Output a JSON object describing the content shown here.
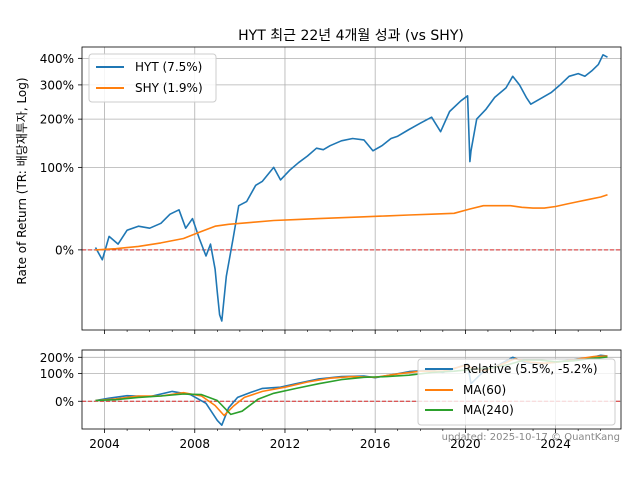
{
  "chart_data": [
    {
      "type": "line",
      "title": "HYT 최근 22년 4개월 성과 (vs SHY)",
      "ylabel": "Rate of Return (TR: 배당재투자, Log)",
      "y_scale": "log (1 + return)",
      "yticks": [
        "0%",
        "100%",
        "200%",
        "300%",
        "400%"
      ],
      "xlim": [
        2003.0,
        2026.9
      ],
      "ylim_pct": [
        -49,
        450
      ],
      "grid": true,
      "legend_position": "top-left",
      "reference_line": {
        "value_pct": 0,
        "color": "#d62728",
        "style": "dashed"
      },
      "series": [
        {
          "name": "HYT (7.5%)",
          "color": "#1f77b4",
          "x": [
            2003.6,
            2003.9,
            2004.2,
            2004.6,
            2005.0,
            2005.5,
            2006.0,
            2006.5,
            2006.9,
            2007.3,
            2007.6,
            2007.9,
            2008.2,
            2008.5,
            2008.7,
            2008.9,
            2009.0,
            2009.1,
            2009.2,
            2009.4,
            2009.7,
            2009.95,
            2010.3,
            2010.7,
            2011.0,
            2011.5,
            2011.8,
            2012.2,
            2012.6,
            2013.0,
            2013.4,
            2013.7,
            2014.0,
            2014.5,
            2015.0,
            2015.5,
            2015.9,
            2016.3,
            2016.7,
            2017.0,
            2017.5,
            2018.0,
            2018.5,
            2018.9,
            2019.3,
            2019.8,
            2020.1,
            2020.2,
            2020.25,
            2020.5,
            2020.9,
            2021.3,
            2021.8,
            2022.1,
            2022.4,
            2022.7,
            2022.9,
            2023.3,
            2023.8,
            2024.2,
            2024.6,
            2025.0,
            2025.3,
            2025.6,
            2025.9,
            2026.1,
            2026.3
          ],
          "values": [
            2,
            -8,
            12,
            5,
            18,
            22,
            20,
            25,
            35,
            40,
            20,
            30,
            10,
            -5,
            5,
            -15,
            -30,
            -42,
            -45,
            -20,
            10,
            45,
            50,
            72,
            78,
            100,
            80,
            95,
            108,
            120,
            135,
            132,
            140,
            150,
            155,
            152,
            130,
            140,
            155,
            160,
            175,
            190,
            205,
            170,
            220,
            250,
            265,
            110,
            130,
            200,
            225,
            260,
            290,
            330,
            300,
            260,
            240,
            255,
            275,
            300,
            330,
            340,
            330,
            350,
            375,
            415,
            405
          ]
        },
        {
          "name": "SHY (1.9%)",
          "color": "#ff7f0e",
          "x": [
            2003.6,
            2004.5,
            2005.5,
            2006.5,
            2007.5,
            2008.2,
            2008.9,
            2009.5,
            2010.5,
            2011.5,
            2012.5,
            2013.5,
            2014.5,
            2015.5,
            2016.5,
            2017.5,
            2018.5,
            2019.5,
            2020.2,
            2020.8,
            2021.5,
            2022.0,
            2022.5,
            2023.0,
            2023.5,
            2024.0,
            2024.5,
            2025.0,
            2025.5,
            2026.0,
            2026.3
          ],
          "values": [
            0,
            1,
            3,
            6,
            10,
            16,
            22,
            24,
            26,
            28,
            29,
            30,
            31,
            32,
            33,
            34,
            35,
            36,
            41,
            45,
            45,
            45,
            43,
            42,
            42,
            44,
            47,
            50,
            53,
            56,
            59
          ]
        }
      ]
    },
    {
      "type": "line",
      "yticks": [
        "0%",
        "100%",
        "200%"
      ],
      "xticks": [
        "2004",
        "2008",
        "2012",
        "2016",
        "2020",
        "2024"
      ],
      "xlim": [
        2003.0,
        2026.9
      ],
      "ylim_pct": [
        -50,
        260
      ],
      "grid": true,
      "legend_position": "lower-right",
      "reference_line": {
        "value_pct": 0,
        "color": "#d62728",
        "style": "dashed"
      },
      "series": [
        {
          "name": "Relative (5.5%, -5.2%)",
          "color": "#1f77b4",
          "x": [
            2003.6,
            2004.2,
            2005.0,
            2006.0,
            2007.0,
            2007.8,
            2008.5,
            2009.0,
            2009.2,
            2009.5,
            2009.9,
            2010.5,
            2011.0,
            2011.8,
            2012.5,
            2013.5,
            2014.5,
            2015.5,
            2016.0,
            2016.8,
            2017.5,
            2018.5,
            2019.0,
            2019.8,
            2020.1,
            2020.25,
            2020.8,
            2021.5,
            2022.1,
            2022.7,
            2023.3,
            2024.0,
            2024.8,
            2025.5,
            2026.0,
            2026.3
          ],
          "values": [
            2,
            8,
            15,
            12,
            28,
            18,
            -5,
            -38,
            -45,
            -15,
            10,
            25,
            38,
            42,
            55,
            75,
            85,
            88,
            80,
            95,
            110,
            118,
            105,
            140,
            155,
            55,
            110,
            150,
            200,
            160,
            155,
            165,
            185,
            195,
            215,
            210
          ]
        },
        {
          "name": "MA(60)",
          "color": "#ff7f0e",
          "x": [
            2003.6,
            2004.5,
            2005.5,
            2006.5,
            2007.5,
            2008.3,
            2008.9,
            2009.3,
            2009.7,
            2010.2,
            2011.0,
            2012.0,
            2013.0,
            2014.0,
            2015.0,
            2016.0,
            2017.0,
            2018.0,
            2019.0,
            2020.0,
            2020.4,
            2020.9,
            2021.5,
            2022.2,
            2022.9,
            2023.5,
            2024.2,
            2025.0,
            2025.7,
            2026.3
          ],
          "values": [
            2,
            6,
            14,
            14,
            24,
            14,
            -10,
            -30,
            -12,
            10,
            28,
            42,
            62,
            78,
            85,
            82,
            98,
            112,
            112,
            145,
            125,
            115,
            145,
            190,
            165,
            158,
            168,
            188,
            205,
            210
          ]
        },
        {
          "name": "MA(240)",
          "color": "#2ca02c",
          "x": [
            2003.6,
            2004.5,
            2005.5,
            2006.5,
            2007.5,
            2008.3,
            2009.0,
            2009.6,
            2010.1,
            2010.8,
            2011.5,
            2012.5,
            2013.5,
            2014.5,
            2015.5,
            2016.5,
            2017.5,
            2018.5,
            2019.5,
            2020.5,
            2021.2,
            2021.9,
            2022.6,
            2023.3,
            2024.0,
            2024.8,
            2025.5,
            2026.3
          ],
          "values": [
            2,
            4,
            10,
            14,
            20,
            18,
            2,
            -28,
            -22,
            5,
            22,
            38,
            55,
            72,
            82,
            85,
            92,
            105,
            112,
            125,
            130,
            150,
            180,
            180,
            168,
            175,
            190,
            202
          ]
        }
      ]
    }
  ],
  "watermark": "updated: 2025-10-17 © QuantKang"
}
